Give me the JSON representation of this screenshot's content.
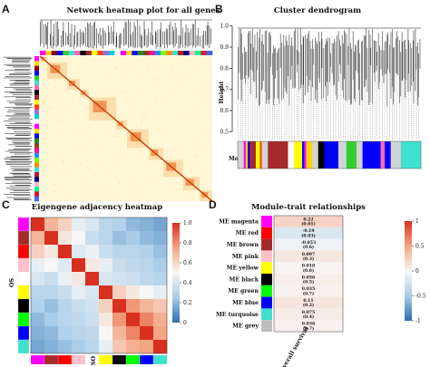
{
  "panels": {
    "A": {
      "letter": "A",
      "title": "Network heatmap plot for all genes",
      "module_bar_colors": [
        "#ff00ff",
        "#ffd700",
        "#8b0000",
        "#0000ff",
        "#32cd32",
        "#40e0d0",
        "#ff69b4",
        "#000000",
        "#a52a2a",
        "#ffff00",
        "#ff4500",
        "#9370db",
        "#00ced1",
        "#ffffff",
        "#ff00ff",
        "#ffd700",
        "#0000ff",
        "#228b22",
        "#8b4513",
        "#ff1493",
        "#1e90ff",
        "#7cfc00",
        "#ff8c00",
        "#40e0d0",
        "#b22222",
        "#000080",
        "#ffb6c1",
        "#00ff7f",
        "#dc143c",
        "#4169e1"
      ],
      "heatmap_colors": {
        "low": "#fff7d6",
        "mid": "#fcd7a0",
        "high": "#e8580c",
        "top": "#c23a00"
      }
    },
    "B": {
      "letter": "B",
      "title": "Cluster dendrogram",
      "ylabel": "Height",
      "yticks": [
        "1.0",
        "0.9",
        "0.8",
        "0.7",
        "0.6",
        "0.5"
      ],
      "ytick_values": [
        1.0,
        0.9,
        0.8,
        0.7,
        0.6,
        0.5
      ],
      "ylim": [
        0.48,
        1.02
      ],
      "module_colors_label": "Module colors",
      "module_segments": [
        {
          "color": "#d3d3d3",
          "w": 3
        },
        {
          "color": "#ff00ff",
          "w": 1
        },
        {
          "color": "#ffd700",
          "w": 1
        },
        {
          "color": "#0000ff",
          "w": 1
        },
        {
          "color": "#a52a2a",
          "w": 3
        },
        {
          "color": "#ffff00",
          "w": 2
        },
        {
          "color": "#ff4500",
          "w": 1
        },
        {
          "color": "#d3d3d3",
          "w": 3
        },
        {
          "color": "#a52a2a",
          "w": 10
        },
        {
          "color": "#ffffff",
          "w": 3
        },
        {
          "color": "#ffff00",
          "w": 4
        },
        {
          "color": "#0000ff",
          "w": 1
        },
        {
          "color": "#ff00ff",
          "w": 1
        },
        {
          "color": "#ffd700",
          "w": 3
        },
        {
          "color": "#d3d3d3",
          "w": 3
        },
        {
          "color": "#000000",
          "w": 3
        },
        {
          "color": "#0000ff",
          "w": 7
        },
        {
          "color": "#d3d3d3",
          "w": 4
        },
        {
          "color": "#32cd32",
          "w": 5
        },
        {
          "color": "#d3d3d3",
          "w": 3
        },
        {
          "color": "#0000ff",
          "w": 9
        },
        {
          "color": "#ff69b4",
          "w": 2
        },
        {
          "color": "#0000ff",
          "w": 3
        },
        {
          "color": "#d3d3d3",
          "w": 5
        },
        {
          "color": "#40e0d0",
          "w": 10
        }
      ]
    },
    "C": {
      "letter": "C",
      "title": "Eigengene adjacency heatmap",
      "row_label": "OS",
      "col_label": "OS",
      "legend_ticks": [
        "1.0",
        "0.8",
        "0.6",
        "0.4",
        "0.2",
        "0"
      ],
      "legend_values": [
        1.0,
        0.8,
        0.6,
        0.4,
        0.2,
        0.0
      ],
      "order_colors": [
        "#ff00ff",
        "#a52a2a",
        "#ff0000",
        "#ffc0cb",
        "#ffffff",
        "#ffff00",
        "#000000",
        "#00ff00",
        "#0000ff",
        "#40e0d0"
      ],
      "matrix": [
        [
          1.0,
          0.7,
          0.62,
          0.45,
          0.4,
          0.3,
          0.28,
          0.2,
          0.18,
          0.15
        ],
        [
          0.7,
          1.0,
          0.55,
          0.5,
          0.35,
          0.3,
          0.22,
          0.25,
          0.2,
          0.18
        ],
        [
          0.62,
          0.55,
          1.0,
          0.42,
          0.46,
          0.35,
          0.3,
          0.3,
          0.28,
          0.22
        ],
        [
          0.45,
          0.5,
          0.42,
          1.0,
          0.55,
          0.45,
          0.35,
          0.32,
          0.3,
          0.26
        ],
        [
          0.4,
          0.35,
          0.46,
          0.55,
          1.0,
          0.4,
          0.38,
          0.36,
          0.32,
          0.3
        ],
        [
          0.3,
          0.3,
          0.35,
          0.45,
          0.4,
          1.0,
          0.62,
          0.55,
          0.5,
          0.45
        ],
        [
          0.28,
          0.22,
          0.3,
          0.35,
          0.38,
          0.62,
          1.0,
          0.78,
          0.7,
          0.65
        ],
        [
          0.2,
          0.25,
          0.3,
          0.32,
          0.36,
          0.55,
          0.78,
          1.0,
          0.82,
          0.72
        ],
        [
          0.18,
          0.2,
          0.28,
          0.3,
          0.32,
          0.5,
          0.7,
          0.82,
          1.0,
          0.75
        ],
        [
          0.15,
          0.18,
          0.22,
          0.26,
          0.3,
          0.45,
          0.65,
          0.72,
          0.75,
          1.0
        ]
      ]
    },
    "D": {
      "letter": "D",
      "title": "Module-trait relationships",
      "x_label": "Overall survival",
      "legend_ticks": [
        "1",
        "0.5",
        "0",
        "-0.5",
        "-1"
      ],
      "legend_values": [
        1,
        0.5,
        0,
        -0.5,
        -1
      ],
      "rows": [
        {
          "label": "ME magenta",
          "swatch": "#ff00ff",
          "r": 0.22,
          "value": "0.22",
          "p": "(0.01)"
        },
        {
          "label": "ME red",
          "swatch": "#ff0000",
          "r": -0.19,
          "value": "-0.19",
          "p": "(0.03)"
        },
        {
          "label": "ME brown",
          "swatch": "#a52a2a",
          "r": -0.053,
          "value": "-0.053",
          "p": "(0.6)"
        },
        {
          "label": "ME pink",
          "swatch": "#ffc0cb",
          "r": 0.097,
          "value": "0.097",
          "p": "(0.3)"
        },
        {
          "label": "ME yellow",
          "swatch": "#ffff00",
          "r": 0.018,
          "value": "0.018",
          "p": "(0.8)"
        },
        {
          "label": "ME black",
          "swatch": "#000000",
          "r": 0.056,
          "value": "0.056",
          "p": "(0.5)"
        },
        {
          "label": "ME green",
          "swatch": "#00ff00",
          "r": 0.035,
          "value": "0.035",
          "p": "(0.7)"
        },
        {
          "label": "ME blue",
          "swatch": "#0000ff",
          "r": 0.11,
          "value": "0.11",
          "p": "(0.2)"
        },
        {
          "label": "ME turquoise",
          "swatch": "#40e0d0",
          "r": 0.075,
          "value": "0.075",
          "p": "(0.4)"
        },
        {
          "label": "ME grey",
          "swatch": "#bebebe",
          "r": 0.036,
          "value": "0.036",
          "p": "(0.7)"
        }
      ]
    }
  }
}
